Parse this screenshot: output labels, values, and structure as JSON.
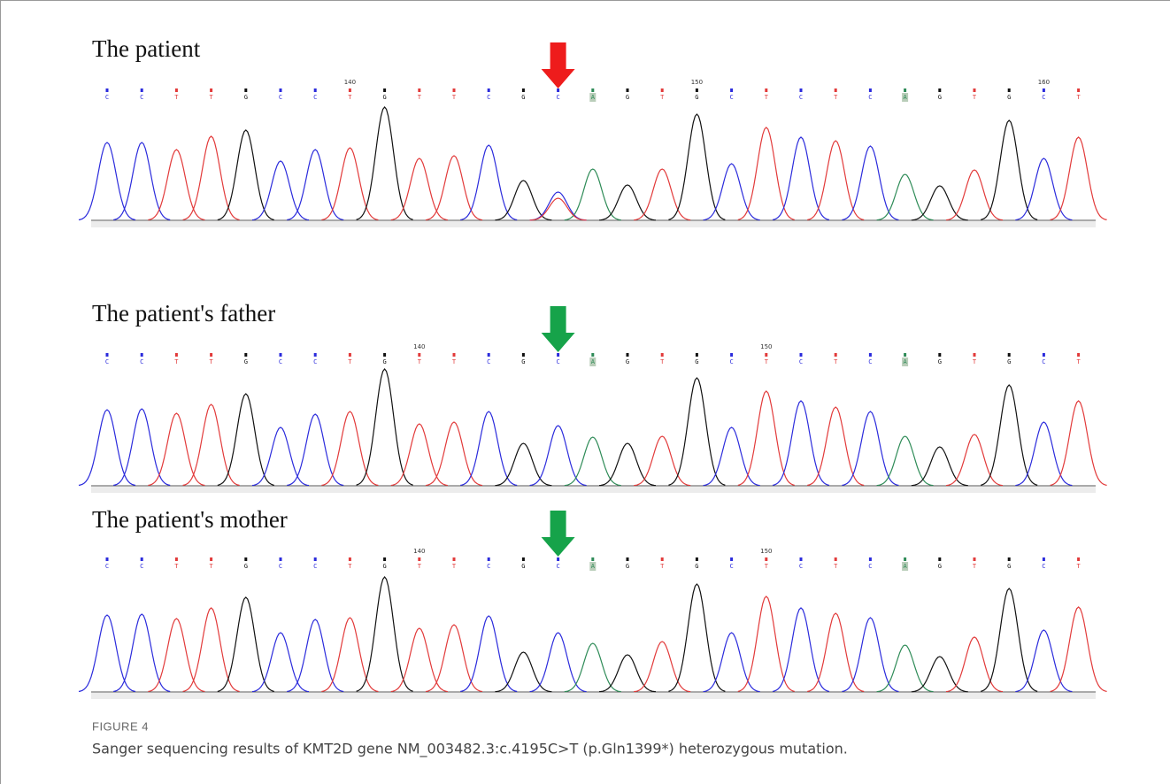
{
  "figure_label": "FIGURE 4",
  "caption": "Sanger sequencing results of KMT2D gene NM_003482.3:c.4195C>T (p.Gln1399*) heterozygous mutation.",
  "base_colors": {
    "A": "#2e8b57",
    "C": "#2b2bdc",
    "G": "#111111",
    "T": "#e23a3a"
  },
  "panels": [
    {
      "title": "The patient",
      "arrow_color": "#ee1c1c",
      "arrow_index": 13,
      "bases": [
        "C",
        "C",
        "T",
        "T",
        "G",
        "C",
        "C",
        "T",
        "G",
        "T",
        "T",
        "C",
        "G",
        "C",
        "A",
        "G",
        "T",
        "G",
        "C",
        "T",
        "C",
        "T",
        "C",
        "A",
        "G",
        "T",
        "G",
        "C",
        "T"
      ],
      "position_labels": [
        null,
        null,
        null,
        null,
        null,
        null,
        null,
        "140",
        null,
        null,
        null,
        null,
        null,
        null,
        null,
        null,
        null,
        "150",
        null,
        null,
        null,
        null,
        null,
        null,
        null,
        null,
        null,
        "160",
        null
      ],
      "peak_heights": [
        88,
        88,
        80,
        95,
        102,
        67,
        80,
        82,
        128,
        70,
        73,
        85,
        45,
        32,
        58,
        40,
        58,
        120,
        64,
        105,
        94,
        90,
        84,
        52,
        39,
        57,
        113,
        70,
        94
      ],
      "secondary_peak": {
        "index": 13,
        "base": "T",
        "height": 25
      }
    },
    {
      "title": "The patient's father",
      "arrow_color": "#16a34a",
      "arrow_index": 13,
      "bases": [
        "C",
        "C",
        "T",
        "T",
        "G",
        "C",
        "C",
        "T",
        "G",
        "T",
        "T",
        "C",
        "G",
        "C",
        "A",
        "G",
        "T",
        "G",
        "C",
        "T",
        "C",
        "T",
        "C",
        "A",
        "G",
        "T",
        "G",
        "C",
        "T"
      ],
      "position_labels": [
        null,
        null,
        null,
        null,
        null,
        null,
        null,
        null,
        null,
        "140",
        null,
        null,
        null,
        null,
        null,
        null,
        null,
        null,
        null,
        "150",
        null,
        null,
        null,
        null,
        null,
        null,
        null,
        null,
        null
      ],
      "peak_heights": [
        86,
        87,
        82,
        92,
        104,
        66,
        81,
        84,
        132,
        70,
        72,
        84,
        48,
        68,
        55,
        48,
        56,
        122,
        66,
        107,
        96,
        89,
        84,
        56,
        44,
        58,
        114,
        72,
        96
      ]
    },
    {
      "title": "The patient's mother",
      "arrow_color": "#16a34a",
      "arrow_index": 13,
      "bases": [
        "C",
        "C",
        "T",
        "T",
        "G",
        "C",
        "C",
        "T",
        "G",
        "T",
        "T",
        "C",
        "G",
        "C",
        "A",
        "G",
        "T",
        "G",
        "C",
        "T",
        "C",
        "T",
        "C",
        "A",
        "G",
        "T",
        "G",
        "C",
        "T"
      ],
      "position_labels": [
        null,
        null,
        null,
        null,
        null,
        null,
        null,
        null,
        null,
        "140",
        null,
        null,
        null,
        null,
        null,
        null,
        null,
        null,
        null,
        "150",
        null,
        null,
        null,
        null,
        null,
        null,
        null,
        null,
        null
      ],
      "peak_heights": [
        87,
        88,
        83,
        95,
        107,
        67,
        82,
        84,
        130,
        72,
        76,
        86,
        45,
        67,
        55,
        42,
        57,
        122,
        67,
        108,
        95,
        89,
        84,
        53,
        40,
        62,
        117,
        70,
        96
      ]
    }
  ]
}
